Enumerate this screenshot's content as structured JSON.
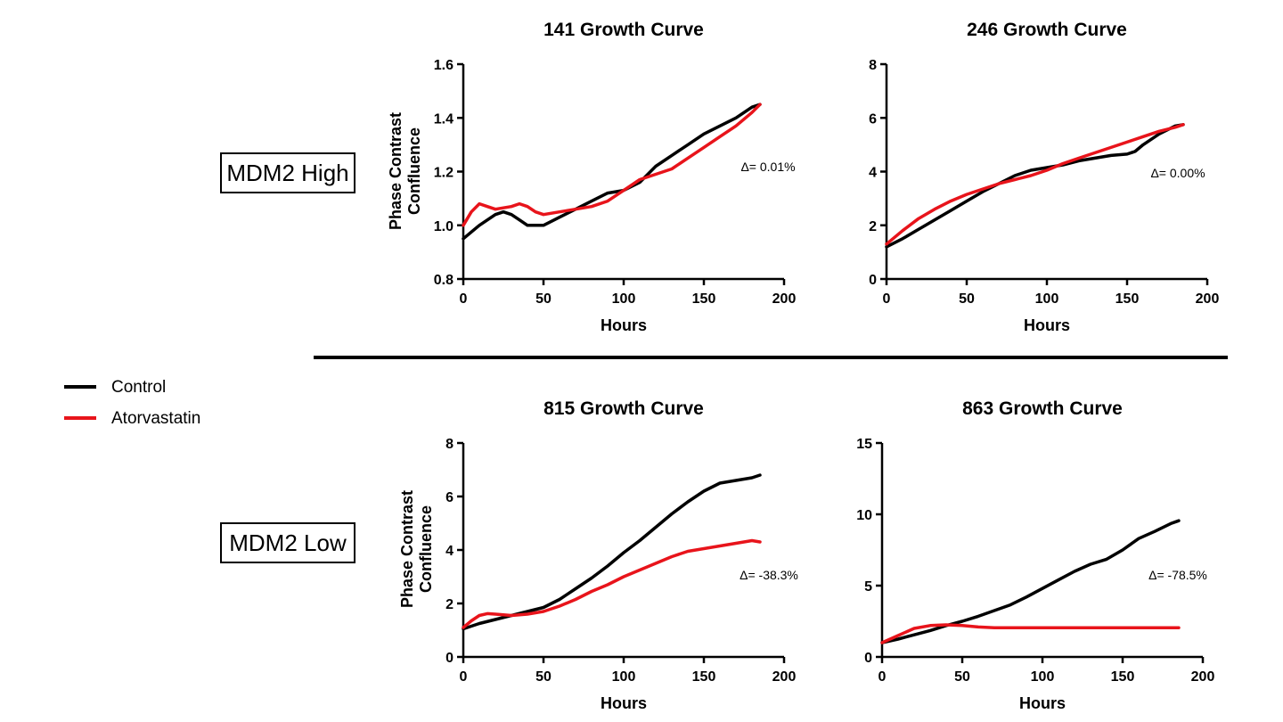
{
  "colors": {
    "control": "#000000",
    "atorvastatin": "#e8141b",
    "divider": "#000000"
  },
  "legend": {
    "items": [
      {
        "label": "Control",
        "color": "#000000"
      },
      {
        "label": "Atorvastatin",
        "color": "#e8141b"
      }
    ]
  },
  "groups": [
    {
      "label": "MDM2 High"
    },
    {
      "label": "MDM2 Low"
    }
  ],
  "chart_data": [
    {
      "type": "line",
      "title": "141 Growth Curve",
      "xlabel": "Hours",
      "ylabel": "Phase Contrast Confluence",
      "xlim": [
        0,
        200
      ],
      "ylim": [
        0.8,
        1.6
      ],
      "xticks": [
        "0",
        "50",
        "100",
        "150",
        "200"
      ],
      "yticks": [
        "0.8",
        "1.0",
        "1.2",
        "1.4",
        "1.6"
      ],
      "annotation": "Δ= 0.01%",
      "series": [
        {
          "name": "Control",
          "x": [
            0,
            10,
            20,
            25,
            30,
            35,
            40,
            45,
            50,
            60,
            70,
            80,
            90,
            100,
            110,
            120,
            130,
            140,
            150,
            160,
            170,
            180,
            185
          ],
          "y": [
            0.95,
            1.0,
            1.04,
            1.05,
            1.04,
            1.02,
            1.0,
            1.0,
            1.0,
            1.03,
            1.06,
            1.09,
            1.12,
            1.13,
            1.16,
            1.22,
            1.26,
            1.3,
            1.34,
            1.37,
            1.4,
            1.44,
            1.45
          ]
        },
        {
          "name": "Atorvastatin",
          "x": [
            0,
            5,
            10,
            15,
            20,
            30,
            35,
            40,
            45,
            50,
            60,
            70,
            80,
            90,
            100,
            110,
            120,
            130,
            140,
            150,
            160,
            170,
            180,
            185
          ],
          "y": [
            1.0,
            1.05,
            1.08,
            1.07,
            1.06,
            1.07,
            1.08,
            1.07,
            1.05,
            1.04,
            1.05,
            1.06,
            1.07,
            1.09,
            1.13,
            1.17,
            1.19,
            1.21,
            1.25,
            1.29,
            1.33,
            1.37,
            1.42,
            1.45
          ]
        }
      ]
    },
    {
      "type": "line",
      "title": "246 Growth Curve",
      "xlabel": "Hours",
      "ylabel": "",
      "xlim": [
        0,
        200
      ],
      "ylim": [
        0,
        8
      ],
      "xticks": [
        "0",
        "50",
        "100",
        "150",
        "200"
      ],
      "yticks": [
        "0",
        "2",
        "4",
        "6",
        "8"
      ],
      "annotation": "Δ= 0.00%",
      "series": [
        {
          "name": "Control",
          "x": [
            0,
            10,
            20,
            30,
            40,
            50,
            60,
            70,
            80,
            90,
            100,
            110,
            120,
            130,
            140,
            150,
            155,
            160,
            170,
            180,
            185
          ],
          "y": [
            1.2,
            1.5,
            1.85,
            2.2,
            2.55,
            2.9,
            3.25,
            3.55,
            3.85,
            4.05,
            4.15,
            4.25,
            4.4,
            4.5,
            4.6,
            4.65,
            4.75,
            5.0,
            5.4,
            5.7,
            5.75
          ]
        },
        {
          "name": "Atorvastatin",
          "x": [
            0,
            10,
            20,
            30,
            40,
            50,
            60,
            70,
            80,
            90,
            100,
            110,
            120,
            130,
            140,
            150,
            160,
            170,
            180,
            185
          ],
          "y": [
            1.3,
            1.8,
            2.25,
            2.6,
            2.9,
            3.15,
            3.35,
            3.55,
            3.7,
            3.85,
            4.05,
            4.3,
            4.5,
            4.7,
            4.9,
            5.1,
            5.3,
            5.5,
            5.65,
            5.75
          ]
        }
      ]
    },
    {
      "type": "line",
      "title": "815 Growth Curve",
      "xlabel": "Hours",
      "ylabel": "Phase Contrast Confluence",
      "xlim": [
        0,
        200
      ],
      "ylim": [
        0,
        8
      ],
      "xticks": [
        "0",
        "50",
        "100",
        "150",
        "200"
      ],
      "yticks": [
        "0",
        "2",
        "4",
        "6",
        "8"
      ],
      "annotation": "Δ= -38.3%",
      "series": [
        {
          "name": "Control",
          "x": [
            0,
            10,
            20,
            30,
            40,
            50,
            60,
            70,
            80,
            90,
            100,
            110,
            120,
            130,
            140,
            150,
            160,
            170,
            180,
            185
          ],
          "y": [
            1.05,
            1.25,
            1.4,
            1.55,
            1.7,
            1.85,
            2.15,
            2.55,
            2.95,
            3.4,
            3.9,
            4.35,
            4.85,
            5.35,
            5.8,
            6.2,
            6.5,
            6.6,
            6.7,
            6.8
          ]
        },
        {
          "name": "Atorvastatin",
          "x": [
            0,
            5,
            10,
            15,
            20,
            30,
            40,
            50,
            60,
            70,
            80,
            90,
            100,
            110,
            120,
            130,
            140,
            150,
            160,
            170,
            180,
            185
          ],
          "y": [
            1.1,
            1.35,
            1.55,
            1.62,
            1.6,
            1.55,
            1.6,
            1.7,
            1.9,
            2.15,
            2.45,
            2.7,
            3.0,
            3.25,
            3.5,
            3.75,
            3.95,
            4.05,
            4.15,
            4.25,
            4.35,
            4.3
          ]
        }
      ]
    },
    {
      "type": "line",
      "title": "863 Growth Curve",
      "xlabel": "Hours",
      "ylabel": "",
      "xlim": [
        0,
        200
      ],
      "ylim": [
        0,
        15
      ],
      "xticks": [
        "0",
        "50",
        "100",
        "150",
        "200"
      ],
      "yticks": [
        "0",
        "5",
        "10",
        "15"
      ],
      "annotation": "Δ= -78.5%",
      "series": [
        {
          "name": "Control",
          "x": [
            0,
            10,
            20,
            30,
            40,
            50,
            60,
            70,
            80,
            90,
            100,
            110,
            120,
            130,
            140,
            150,
            160,
            170,
            180,
            185
          ],
          "y": [
            1.0,
            1.25,
            1.55,
            1.85,
            2.2,
            2.5,
            2.85,
            3.25,
            3.65,
            4.2,
            4.8,
            5.4,
            6.0,
            6.5,
            6.85,
            7.5,
            8.3,
            8.8,
            9.35,
            9.55
          ]
        },
        {
          "name": "Atorvastatin",
          "x": [
            0,
            10,
            20,
            30,
            40,
            50,
            60,
            70,
            80,
            100,
            120,
            140,
            160,
            180,
            185
          ],
          "y": [
            1.0,
            1.5,
            2.0,
            2.2,
            2.25,
            2.2,
            2.1,
            2.05,
            2.05,
            2.05,
            2.05,
            2.05,
            2.05,
            2.05,
            2.05
          ]
        }
      ]
    }
  ]
}
